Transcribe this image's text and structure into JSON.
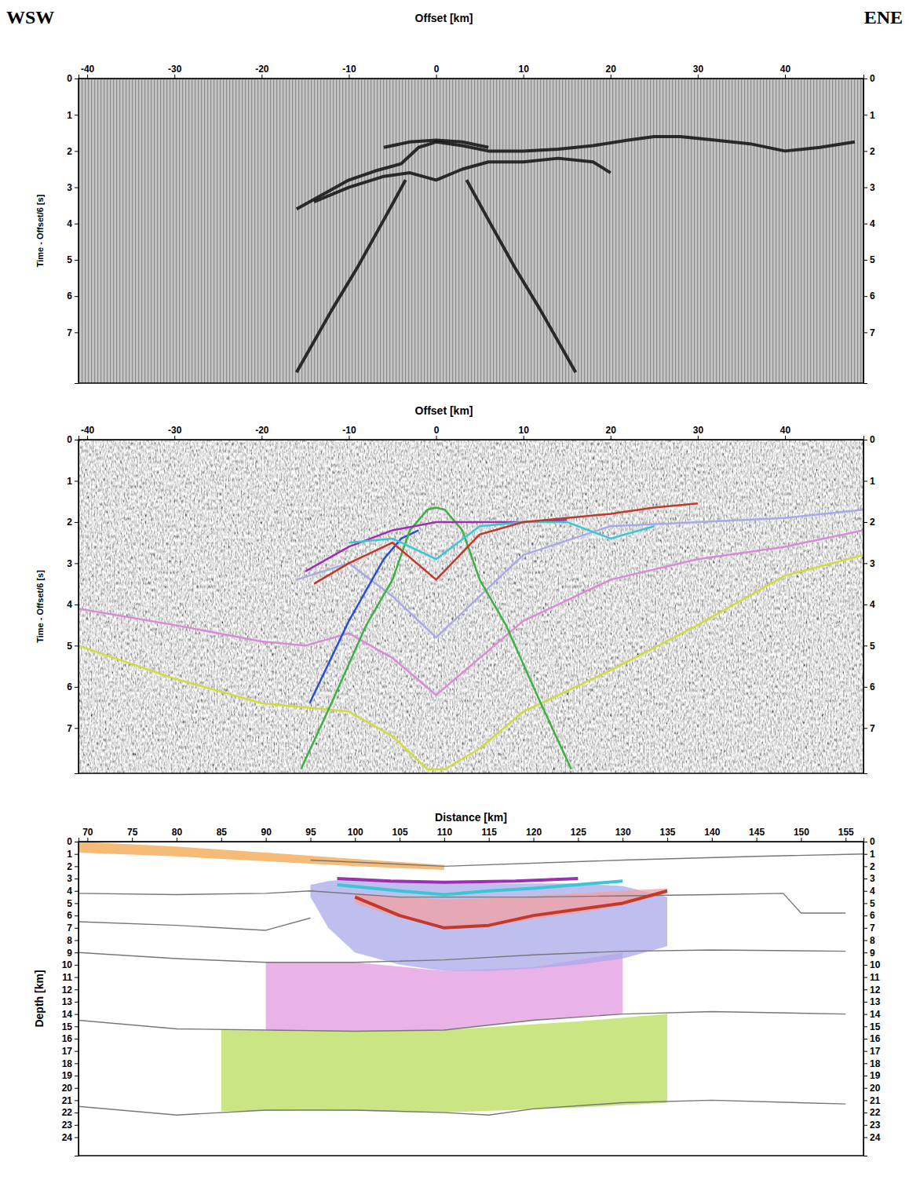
{
  "chart_data": [
    {
      "type": "line",
      "annotations": [
        "WSW",
        "ENE"
      ],
      "xlabel": "Offset [km]",
      "ylabel": "Time - Offset/6 [s]",
      "xlim": [
        -41,
        49
      ],
      "ylim": [
        0,
        8.4
      ],
      "xticks": [
        -40,
        -30,
        -20,
        -10,
        0,
        10,
        20,
        30,
        40
      ],
      "yticks": [
        0,
        1,
        2,
        3,
        4,
        5,
        6,
        7
      ],
      "series": [
        {
          "color": "#111111",
          "x": [
            -3.5,
            -6,
            -9,
            -12,
            -16
          ],
          "values": [
            2.8,
            3.9,
            5.2,
            6.4,
            8.1
          ]
        },
        {
          "color": "#111111",
          "x": [
            3.5,
            6,
            9,
            12,
            16
          ],
          "values": [
            2.8,
            3.9,
            5.2,
            6.4,
            8.1
          ]
        },
        {
          "color": "#111111",
          "x": [
            -16,
            -13,
            -10,
            -7,
            -4,
            -2,
            0,
            3,
            6,
            10,
            14,
            18,
            22,
            25,
            28,
            32,
            36,
            40,
            44,
            48
          ],
          "values": [
            3.6,
            3.2,
            2.8,
            2.55,
            2.35,
            1.9,
            1.75,
            1.85,
            2.0,
            2.0,
            1.95,
            1.85,
            1.7,
            1.6,
            1.6,
            1.7,
            1.8,
            2.0,
            1.9,
            1.75
          ]
        },
        {
          "color": "#111111",
          "x": [
            -14,
            -10,
            -6,
            -3,
            0,
            3,
            6,
            10,
            14,
            18,
            20
          ],
          "values": [
            3.4,
            3.0,
            2.7,
            2.6,
            2.8,
            2.5,
            2.3,
            2.3,
            2.2,
            2.3,
            2.6
          ]
        },
        {
          "color": "#111111",
          "x": [
            -6,
            -3,
            0,
            3,
            6
          ],
          "values": [
            1.9,
            1.75,
            1.7,
            1.75,
            1.9
          ]
        }
      ]
    },
    {
      "type": "line",
      "xlabel": "Offset [km]",
      "ylabel": "Time - Offset/6 [s]",
      "xlim": [
        -41,
        49
      ],
      "ylim": [
        0,
        8.1
      ],
      "xticks": [
        -40,
        -30,
        -20,
        -10,
        0,
        10,
        20,
        30,
        40
      ],
      "yticks": [
        0,
        1,
        2,
        3,
        4,
        5,
        6,
        7
      ],
      "series": [
        {
          "color": "#d0dc3a",
          "x": [
            -41,
            -30,
            -20,
            -15,
            -10,
            -5,
            -1,
            1,
            5,
            10,
            20,
            30,
            40,
            49
          ],
          "values": [
            5.0,
            5.8,
            6.4,
            6.5,
            6.6,
            7.2,
            8.0,
            8.0,
            7.5,
            6.6,
            5.6,
            4.5,
            3.3,
            2.8
          ]
        },
        {
          "color": "#d98ad8",
          "x": [
            -41,
            -30,
            -20,
            -15,
            -10,
            -5,
            0,
            5,
            10,
            20,
            30,
            40,
            49
          ],
          "values": [
            4.1,
            4.5,
            4.9,
            5.0,
            4.7,
            5.3,
            6.2,
            5.3,
            4.4,
            3.4,
            2.9,
            2.6,
            2.2
          ]
        },
        {
          "color": "#a9a9ea",
          "x": [
            -16,
            -10,
            -5,
            0,
            5,
            10,
            20,
            30,
            40,
            49
          ],
          "values": [
            3.4,
            3.0,
            3.8,
            4.8,
            3.8,
            2.8,
            2.1,
            2.0,
            1.9,
            1.7
          ]
        },
        {
          "color": "#2a4fd6",
          "x": [
            -14.5,
            -10,
            -6,
            -4,
            -2
          ],
          "values": [
            6.4,
            4.4,
            2.9,
            2.4,
            2.2
          ]
        },
        {
          "color": "#3cb043",
          "x": [
            -15.5,
            -12,
            -8,
            -5,
            -3,
            -1,
            0,
            1,
            3,
            5,
            8,
            12,
            15.5
          ],
          "values": [
            8.0,
            6.4,
            4.5,
            3.4,
            2.2,
            1.7,
            1.65,
            1.7,
            2.2,
            3.4,
            4.5,
            6.4,
            8.0
          ]
        },
        {
          "color": "#9b30b0",
          "x": [
            -15,
            -10,
            -5,
            0,
            5,
            10,
            15
          ],
          "values": [
            3.2,
            2.6,
            2.2,
            2.0,
            2.0,
            2.0,
            1.95
          ]
        },
        {
          "color": "#3bc6d6",
          "x": [
            -10,
            -5,
            0,
            5,
            10,
            15,
            20,
            25
          ],
          "values": [
            2.5,
            2.4,
            2.9,
            2.1,
            2.0,
            2.0,
            2.4,
            2.1
          ]
        },
        {
          "color": "#c0392b",
          "x": [
            -14,
            -10,
            -5,
            0,
            5,
            10,
            15,
            20,
            25,
            30
          ],
          "values": [
            3.5,
            3.0,
            2.5,
            3.4,
            2.3,
            2.0,
            1.9,
            1.8,
            1.65,
            1.55
          ]
        }
      ]
    },
    {
      "type": "line",
      "xlabel": "Distance [km]",
      "ylabel": "Depth [km]",
      "xlim": [
        69,
        157
      ],
      "ylim": [
        0,
        25.5
      ],
      "xticks": [
        70,
        75,
        80,
        85,
        90,
        95,
        100,
        105,
        110,
        115,
        120,
        125,
        130,
        135,
        140,
        145,
        150,
        155
      ],
      "yticks": [
        0,
        1,
        2,
        3,
        4,
        5,
        6,
        7,
        8,
        9,
        10,
        11,
        12,
        13,
        14,
        15,
        16,
        17,
        18,
        19,
        20,
        21,
        22,
        23,
        24
      ],
      "series": [
        {
          "type": "area",
          "color": "#b8dc5a",
          "x": [
            85,
            95,
            110,
            125,
            135
          ],
          "base": [
            15.3,
            15.4,
            15.3,
            14.6,
            14.0
          ],
          "values": [
            21.9,
            21.8,
            22.0,
            21.6,
            21.2
          ]
        },
        {
          "type": "area",
          "color": "#e29ae0",
          "x": [
            90,
            100,
            110,
            120,
            130
          ],
          "base": [
            9.8,
            9.8,
            10.5,
            10.2,
            9.0
          ],
          "values": [
            15.3,
            15.4,
            15.3,
            14.5,
            14.0
          ]
        },
        {
          "type": "area",
          "color": "#a9a9ea",
          "x": [
            95,
            97,
            100,
            105,
            110,
            115,
            120,
            125,
            130,
            135
          ],
          "base": [
            3.5,
            3.2,
            3.0,
            3.2,
            3.3,
            3.4,
            3.4,
            3.4,
            3.6,
            4.5
          ],
          "values": [
            4.5,
            7.0,
            9.0,
            10.0,
            10.5,
            10.5,
            10.3,
            10.0,
            9.5,
            8.5
          ]
        },
        {
          "type": "area",
          "color": "#f2a0a0",
          "x": [
            100,
            105,
            110,
            115,
            120,
            125,
            130,
            135
          ],
          "base": [
            4.2,
            4.5,
            4.7,
            4.6,
            4.4,
            4.2,
            4.0,
            3.8
          ],
          "values": [
            5.0,
            6.2,
            7.0,
            6.9,
            6.3,
            5.8,
            5.2,
            4.2
          ]
        },
        {
          "type": "area",
          "color": "#f3a64a",
          "x": [
            69,
            80,
            90,
            100,
            110
          ],
          "base": [
            0,
            0.4,
            0.9,
            1.4,
            1.9
          ],
          "values": [
            0.9,
            1.2,
            1.6,
            2.0,
            2.3
          ]
        },
        {
          "color": "#777777",
          "x": [
            95,
            110,
            130,
            145,
            157
          ],
          "values": [
            1.5,
            2.0,
            1.5,
            1.2,
            1.0
          ]
        },
        {
          "color": "#777777",
          "x": [
            69,
            80,
            90,
            95,
            105,
            120,
            140,
            148,
            150,
            155
          ],
          "values": [
            4.2,
            4.3,
            4.2,
            4.0,
            4.5,
            4.5,
            4.3,
            4.2,
            5.8,
            5.8
          ]
        },
        {
          "color": "#777777",
          "x": [
            69,
            80,
            90,
            95
          ],
          "values": [
            6.5,
            6.8,
            7.2,
            6.2
          ]
        },
        {
          "color": "#777777",
          "x": [
            69,
            80,
            90,
            100,
            110,
            120,
            130,
            140,
            155
          ],
          "values": [
            9.0,
            9.5,
            9.8,
            9.8,
            9.6,
            9.2,
            8.9,
            8.8,
            8.9
          ]
        },
        {
          "color": "#777777",
          "x": [
            69,
            80,
            90,
            100,
            110,
            120,
            130,
            140,
            155
          ],
          "values": [
            14.5,
            15.2,
            15.3,
            15.4,
            15.3,
            14.5,
            14.0,
            13.8,
            14.0
          ]
        },
        {
          "color": "#777777",
          "x": [
            69,
            80,
            90,
            100,
            110,
            115,
            120,
            130,
            140,
            155
          ],
          "values": [
            21.5,
            22.2,
            21.8,
            21.8,
            22.0,
            22.2,
            21.7,
            21.2,
            21.0,
            21.3
          ]
        },
        {
          "color": "#9b30b0",
          "x": [
            98,
            104,
            110,
            118,
            125
          ],
          "values": [
            3.0,
            3.2,
            3.3,
            3.2,
            3.0
          ]
        },
        {
          "color": "#3bc6d6",
          "x": [
            98,
            105,
            110,
            115,
            120,
            130
          ],
          "values": [
            3.5,
            4.0,
            4.3,
            4.0,
            3.8,
            3.2
          ]
        },
        {
          "color": "#c0392b",
          "x": [
            100,
            105,
            110,
            115,
            120,
            125,
            130,
            135
          ],
          "values": [
            4.5,
            6.0,
            7.0,
            6.8,
            6.0,
            5.5,
            5.0,
            4.0
          ]
        }
      ]
    }
  ]
}
